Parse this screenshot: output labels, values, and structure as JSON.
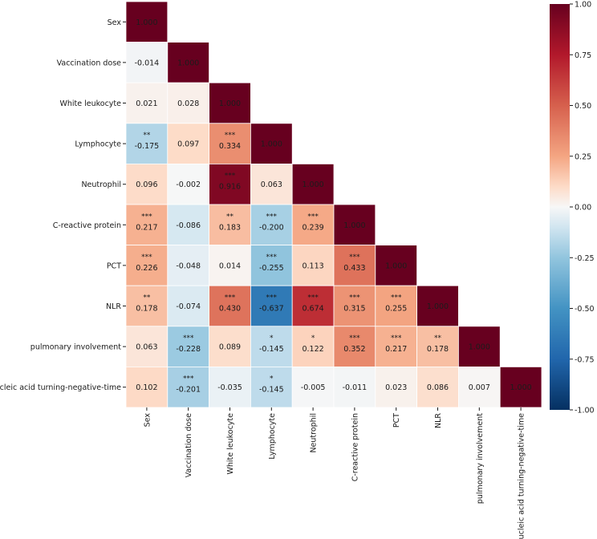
{
  "chart_data": {
    "type": "heatmap",
    "title": "",
    "variables": [
      "Sex",
      "Vaccination dose",
      "White leukocyte",
      "Lymphocyte",
      "Neutrophil",
      "C-reactive protein",
      "PCT",
      "NLR",
      "pulmonary involvement",
      "Nucleic acid turning-negative-time"
    ],
    "cells": [
      [
        {
          "v": 1.0,
          "t": "1.000",
          "s": ""
        }
      ],
      [
        {
          "v": -0.014,
          "t": "-0.014",
          "s": ""
        },
        {
          "v": 1.0,
          "t": "1.000",
          "s": ""
        }
      ],
      [
        {
          "v": 0.021,
          "t": "0.021",
          "s": ""
        },
        {
          "v": 0.028,
          "t": "0.028",
          "s": ""
        },
        {
          "v": 1.0,
          "t": "1.000",
          "s": ""
        }
      ],
      [
        {
          "v": -0.175,
          "t": "-0.175",
          "s": "**"
        },
        {
          "v": 0.097,
          "t": "0.097",
          "s": ""
        },
        {
          "v": 0.334,
          "t": "0.334",
          "s": "***"
        },
        {
          "v": 1.0,
          "t": "1.000",
          "s": ""
        }
      ],
      [
        {
          "v": 0.096,
          "t": "0.096",
          "s": ""
        },
        {
          "v": -0.002,
          "t": "-0.002",
          "s": ""
        },
        {
          "v": 0.916,
          "t": "0.916",
          "s": "***"
        },
        {
          "v": 0.063,
          "t": "0.063",
          "s": ""
        },
        {
          "v": 1.0,
          "t": "1.000",
          "s": ""
        }
      ],
      [
        {
          "v": 0.217,
          "t": "0.217",
          "s": "***"
        },
        {
          "v": -0.086,
          "t": "-0.086",
          "s": ""
        },
        {
          "v": 0.183,
          "t": "0.183",
          "s": "**"
        },
        {
          "v": -0.2,
          "t": "-0.200",
          "s": "***"
        },
        {
          "v": 0.239,
          "t": "0.239",
          "s": "***"
        },
        {
          "v": 1.0,
          "t": "1.000",
          "s": ""
        }
      ],
      [
        {
          "v": 0.226,
          "t": "0.226",
          "s": "***"
        },
        {
          "v": -0.048,
          "t": "-0.048",
          "s": ""
        },
        {
          "v": 0.014,
          "t": "0.014",
          "s": ""
        },
        {
          "v": -0.255,
          "t": "-0.255",
          "s": "***"
        },
        {
          "v": 0.113,
          "t": "0.113",
          "s": ""
        },
        {
          "v": 0.433,
          "t": "0.433",
          "s": "***"
        },
        {
          "v": 1.0,
          "t": "1.000",
          "s": ""
        }
      ],
      [
        {
          "v": 0.178,
          "t": "0.178",
          "s": "**"
        },
        {
          "v": -0.074,
          "t": "-0.074",
          "s": ""
        },
        {
          "v": 0.43,
          "t": "0.430",
          "s": "***"
        },
        {
          "v": -0.637,
          "t": "-0.637",
          "s": "***"
        },
        {
          "v": 0.674,
          "t": "0.674",
          "s": "***"
        },
        {
          "v": 0.315,
          "t": "0.315",
          "s": "***"
        },
        {
          "v": 0.255,
          "t": "0.255",
          "s": "***"
        },
        {
          "v": 1.0,
          "t": "1.000",
          "s": ""
        }
      ],
      [
        {
          "v": 0.063,
          "t": "0.063",
          "s": ""
        },
        {
          "v": -0.228,
          "t": "-0.228",
          "s": "***"
        },
        {
          "v": 0.089,
          "t": "0.089",
          "s": ""
        },
        {
          "v": -0.145,
          "t": "-0.145",
          "s": "*"
        },
        {
          "v": 0.122,
          "t": "0.122",
          "s": "*"
        },
        {
          "v": 0.352,
          "t": "0.352",
          "s": "***"
        },
        {
          "v": 0.217,
          "t": "0.217",
          "s": "***"
        },
        {
          "v": 0.178,
          "t": "0.178",
          "s": "**"
        },
        {
          "v": 1.0,
          "t": "1.000",
          "s": ""
        }
      ],
      [
        {
          "v": 0.102,
          "t": "0.102",
          "s": ""
        },
        {
          "v": -0.201,
          "t": "-0.201",
          "s": "***"
        },
        {
          "v": -0.035,
          "t": "-0.035",
          "s": ""
        },
        {
          "v": -0.145,
          "t": "-0.145",
          "s": "*"
        },
        {
          "v": -0.005,
          "t": "-0.005",
          "s": ""
        },
        {
          "v": -0.011,
          "t": "-0.011",
          "s": ""
        },
        {
          "v": 0.023,
          "t": "0.023",
          "s": ""
        },
        {
          "v": 0.086,
          "t": "0.086",
          "s": ""
        },
        {
          "v": 0.007,
          "t": "0.007",
          "s": ""
        },
        {
          "v": 1.0,
          "t": "1.000",
          "s": ""
        }
      ]
    ],
    "colorbar": {
      "range": [
        -1.0,
        1.0
      ],
      "ticks": [
        "1.00",
        "0.75",
        "0.50",
        "0.25",
        "0.00",
        "-0.25",
        "-0.50",
        "-0.75",
        "-1.00"
      ],
      "tick_values": [
        1.0,
        0.75,
        0.5,
        0.25,
        0.0,
        -0.25,
        -0.5,
        -0.75,
        -1.0
      ],
      "colormap": "RdBu_r"
    }
  }
}
